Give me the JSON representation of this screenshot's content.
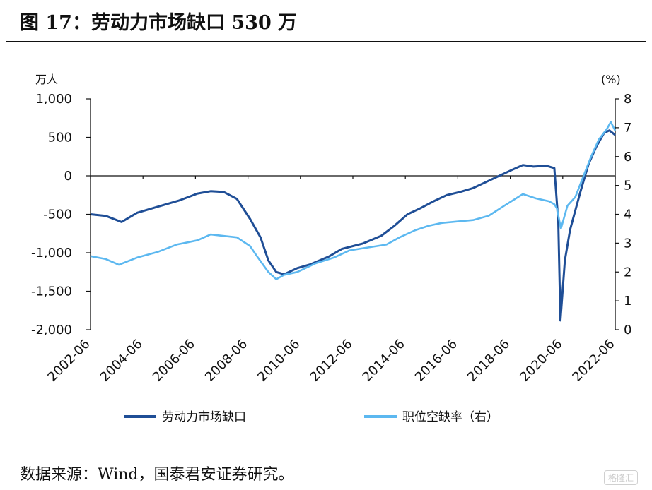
{
  "header": {
    "title": "图 17：劳动力市场缺口 530 万"
  },
  "footer": {
    "source": "数据来源：Wind，国泰君安证券研究。",
    "watermark": "格隆汇"
  },
  "chart_data": {
    "type": "line",
    "title": "劳动力市场缺口 530 万",
    "left_axis": {
      "unit": "万人",
      "ylim": [
        -2000,
        1000
      ],
      "ticks": [
        1000,
        500,
        0,
        -500,
        -1000,
        -1500,
        -2000
      ],
      "tick_labels": [
        "1,000",
        "500",
        "0",
        "-500",
        "-1,000",
        "-1,500",
        "-2,000"
      ]
    },
    "right_axis": {
      "unit": "(%)",
      "ylim": [
        0,
        8
      ],
      "ticks": [
        8,
        7,
        6,
        5,
        4,
        3,
        2,
        1,
        0
      ],
      "tick_labels": [
        "8",
        "7",
        "6",
        "5",
        "4",
        "3",
        "2",
        "1",
        "0"
      ]
    },
    "x_axis": {
      "xlim": [
        2002.42,
        2022.42
      ],
      "tick_labels": [
        "2002-06",
        "2004-06",
        "2006-06",
        "2008-06",
        "2010-06",
        "2012-06",
        "2014-06",
        "2016-06",
        "2018-06",
        "2020-06",
        "2022-06"
      ],
      "tick_values": [
        2002.42,
        2004.42,
        2006.42,
        2008.42,
        2010.42,
        2012.42,
        2014.42,
        2016.42,
        2018.42,
        2020.42,
        2022.42
      ]
    },
    "grid": false,
    "legend_position": "bottom",
    "series": [
      {
        "name": "劳动力市场缺口",
        "axis": "left",
        "color": "#1f4e96",
        "points": [
          [
            2002.42,
            -500
          ],
          [
            2003.0,
            -520
          ],
          [
            2003.6,
            -600
          ],
          [
            2004.2,
            -480
          ],
          [
            2005.0,
            -400
          ],
          [
            2005.8,
            -320
          ],
          [
            2006.5,
            -230
          ],
          [
            2007.0,
            -200
          ],
          [
            2007.5,
            -210
          ],
          [
            2008.0,
            -300
          ],
          [
            2008.5,
            -560
          ],
          [
            2008.9,
            -800
          ],
          [
            2009.2,
            -1100
          ],
          [
            2009.5,
            -1250
          ],
          [
            2009.8,
            -1280
          ],
          [
            2010.3,
            -1200
          ],
          [
            2010.8,
            -1150
          ],
          [
            2011.5,
            -1050
          ],
          [
            2012.0,
            -950
          ],
          [
            2012.8,
            -880
          ],
          [
            2013.5,
            -780
          ],
          [
            2014.0,
            -650
          ],
          [
            2014.5,
            -500
          ],
          [
            2015.0,
            -420
          ],
          [
            2015.5,
            -330
          ],
          [
            2016.0,
            -250
          ],
          [
            2016.5,
            -210
          ],
          [
            2017.0,
            -160
          ],
          [
            2017.5,
            -80
          ],
          [
            2018.0,
            0
          ],
          [
            2018.5,
            80
          ],
          [
            2018.9,
            140
          ],
          [
            2019.3,
            120
          ],
          [
            2019.8,
            130
          ],
          [
            2020.1,
            100
          ],
          [
            2020.25,
            -600
          ],
          [
            2020.33,
            -1880
          ],
          [
            2020.5,
            -1100
          ],
          [
            2020.7,
            -700
          ],
          [
            2020.9,
            -450
          ],
          [
            2021.1,
            -200
          ],
          [
            2021.4,
            150
          ],
          [
            2021.7,
            380
          ],
          [
            2022.0,
            560
          ],
          [
            2022.2,
            590
          ],
          [
            2022.42,
            530
          ]
        ]
      },
      {
        "name": "职位空缺率（右）",
        "axis": "right",
        "color": "#5cb8f0",
        "points": [
          [
            2002.42,
            2.55
          ],
          [
            2003.0,
            2.45
          ],
          [
            2003.5,
            2.25
          ],
          [
            2004.2,
            2.5
          ],
          [
            2005.0,
            2.7
          ],
          [
            2005.7,
            2.95
          ],
          [
            2006.5,
            3.1
          ],
          [
            2007.0,
            3.3
          ],
          [
            2007.5,
            3.25
          ],
          [
            2008.0,
            3.2
          ],
          [
            2008.5,
            2.9
          ],
          [
            2008.8,
            2.5
          ],
          [
            2009.2,
            2.0
          ],
          [
            2009.5,
            1.75
          ],
          [
            2009.8,
            1.9
          ],
          [
            2010.3,
            2.0
          ],
          [
            2011.0,
            2.3
          ],
          [
            2011.7,
            2.5
          ],
          [
            2012.3,
            2.75
          ],
          [
            2013.0,
            2.85
          ],
          [
            2013.7,
            2.95
          ],
          [
            2014.2,
            3.2
          ],
          [
            2014.8,
            3.45
          ],
          [
            2015.3,
            3.6
          ],
          [
            2015.8,
            3.7
          ],
          [
            2016.4,
            3.75
          ],
          [
            2017.0,
            3.8
          ],
          [
            2017.6,
            3.95
          ],
          [
            2018.2,
            4.3
          ],
          [
            2018.9,
            4.7
          ],
          [
            2019.4,
            4.55
          ],
          [
            2019.9,
            4.45
          ],
          [
            2020.1,
            4.35
          ],
          [
            2020.2,
            4.2
          ],
          [
            2020.35,
            3.5
          ],
          [
            2020.6,
            4.3
          ],
          [
            2020.9,
            4.6
          ],
          [
            2021.2,
            5.3
          ],
          [
            2021.5,
            6.0
          ],
          [
            2021.8,
            6.6
          ],
          [
            2022.1,
            6.95
          ],
          [
            2022.25,
            7.2
          ],
          [
            2022.42,
            6.9
          ]
        ]
      }
    ]
  }
}
